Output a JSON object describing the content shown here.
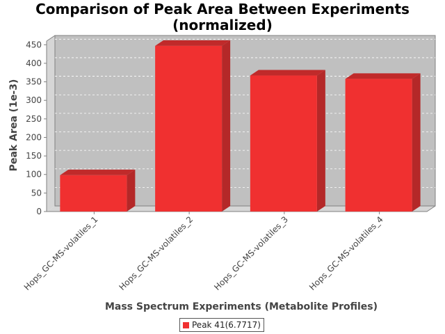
{
  "chart_data": {
    "type": "bar",
    "title": "Comparison of Peak Area Between Experiments\n(normalized)",
    "xlabel": "Mass Spectrum Experiments (Metabolite Profiles)",
    "ylabel": "Peak Area (1e-3)",
    "categories": [
      "Hops_GC-MS-volatiles_1",
      "Hops_GC-MS-volatiles_2",
      "Hops_GC-MS-volatiles_3",
      "Hops_GC-MS-volatiles_4"
    ],
    "series": [
      {
        "name": "Peak 41(6.7717)",
        "values": [
          98,
          447,
          367,
          358
        ],
        "color": "#f03030"
      }
    ],
    "ylim": [
      0,
      460
    ],
    "yticks": [
      0,
      50,
      100,
      150,
      200,
      250,
      300,
      350,
      400,
      450
    ],
    "grid": true,
    "legend": "bottom-center",
    "style": "3d-bar"
  }
}
